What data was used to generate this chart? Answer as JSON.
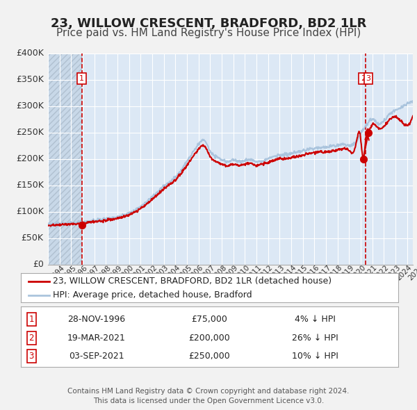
{
  "title": "23, WILLOW CRESCENT, BRADFORD, BD2 1LR",
  "subtitle": "Price paid vs. HM Land Registry's House Price Index (HPI)",
  "ylim": [
    0,
    400000
  ],
  "yticks": [
    0,
    50000,
    100000,
    150000,
    200000,
    250000,
    300000,
    350000,
    400000
  ],
  "ytick_labels": [
    "£0",
    "£50K",
    "£100K",
    "£150K",
    "£200K",
    "£250K",
    "£300K",
    "£350K",
    "£400K"
  ],
  "xlim_start": 1994.0,
  "xlim_end": 2025.5,
  "hpi_color": "#aac4dd",
  "price_color": "#cc0000",
  "plot_bg_color": "#dce8f5",
  "hatch_bg_color": "#c8d8e8",
  "grid_color": "#ffffff",
  "dashed_line_color": "#cc0000",
  "sale_dates": [
    1996.91,
    2021.21,
    2021.67
  ],
  "sale_prices": [
    75000,
    200000,
    250000
  ],
  "vlines": [
    1996.91,
    2021.44
  ],
  "legend_entries": [
    {
      "label": "23, WILLOW CRESCENT, BRADFORD, BD2 1LR (detached house)",
      "color": "#cc0000"
    },
    {
      "label": "HPI: Average price, detached house, Bradford",
      "color": "#aac4dd"
    }
  ],
  "table_rows": [
    {
      "num": "1",
      "date": "28-NOV-1996",
      "price": "£75,000",
      "hpi": "4% ↓ HPI"
    },
    {
      "num": "2",
      "date": "19-MAR-2021",
      "price": "£200,000",
      "hpi": "26% ↓ HPI"
    },
    {
      "num": "3",
      "date": "03-SEP-2021",
      "price": "£250,000",
      "hpi": "10% ↓ HPI"
    }
  ],
  "footer": "Contains HM Land Registry data © Crown copyright and database right 2024.\nThis data is licensed under the Open Government Licence v3.0.",
  "title_fontsize": 13,
  "subtitle_fontsize": 11,
  "tick_fontsize": 9,
  "legend_fontsize": 9,
  "table_fontsize": 9,
  "footer_fontsize": 7.5,
  "hpi_years": [
    1994.0,
    1995.0,
    1996.0,
    1997.0,
    1998.0,
    1999.0,
    2000.0,
    2001.0,
    2002.0,
    2003.0,
    2004.0,
    2005.0,
    2006.0,
    2007.0,
    2007.5,
    2008.0,
    2008.5,
    2009.0,
    2009.5,
    2010.0,
    2010.5,
    2011.0,
    2011.5,
    2012.0,
    2012.5,
    2013.0,
    2013.5,
    2014.0,
    2014.5,
    2015.0,
    2015.5,
    2016.0,
    2016.5,
    2017.0,
    2017.5,
    2018.0,
    2018.5,
    2019.0,
    2019.5,
    2020.0,
    2020.5,
    2021.0,
    2021.5,
    2022.0,
    2022.5,
    2023.0,
    2023.5,
    2024.0,
    2024.5,
    2025.5
  ],
  "hpi_prices": [
    76000,
    77000,
    78000,
    80000,
    83000,
    86000,
    90000,
    97000,
    110000,
    128000,
    148000,
    165000,
    195000,
    228000,
    235000,
    215000,
    205000,
    198000,
    195000,
    198000,
    195000,
    197000,
    198000,
    195000,
    197000,
    200000,
    205000,
    207000,
    208000,
    210000,
    212000,
    215000,
    218000,
    220000,
    222000,
    222000,
    224000,
    226000,
    228000,
    225000,
    230000,
    248000,
    265000,
    275000,
    268000,
    272000,
    285000,
    292000,
    298000,
    310000
  ],
  "price_years": [
    1994.0,
    1995.0,
    1996.0,
    1997.0,
    1998.0,
    1999.0,
    2000.0,
    2001.0,
    2002.0,
    2003.0,
    2004.0,
    2005.0,
    2006.0,
    2007.0,
    2007.5,
    2008.0,
    2008.5,
    2009.0,
    2009.5,
    2010.0,
    2010.5,
    2011.0,
    2011.5,
    2012.0,
    2012.5,
    2013.0,
    2013.5,
    2014.0,
    2014.5,
    2015.0,
    2015.5,
    2016.0,
    2016.5,
    2017.0,
    2017.5,
    2018.0,
    2018.5,
    2019.0,
    2019.5,
    2020.0,
    2020.5,
    2021.0,
    2021.2,
    2021.5,
    2021.7,
    2022.0,
    2022.5,
    2023.0,
    2023.5,
    2024.0,
    2024.5,
    2025.5
  ],
  "price_prices": [
    74000,
    75000,
    76500,
    78000,
    81000,
    84000,
    87000,
    94000,
    106000,
    123000,
    143000,
    160000,
    188000,
    218000,
    225000,
    205000,
    195000,
    190000,
    187000,
    190000,
    188000,
    190000,
    191000,
    188000,
    190000,
    193000,
    197000,
    200000,
    200000,
    202000,
    204000,
    207000,
    210000,
    212000,
    213000,
    213000,
    215000,
    217000,
    219000,
    216000,
    220000,
    238000,
    200000,
    250000,
    255000,
    265000,
    258000,
    262000,
    274000,
    280000,
    271000,
    282000
  ]
}
